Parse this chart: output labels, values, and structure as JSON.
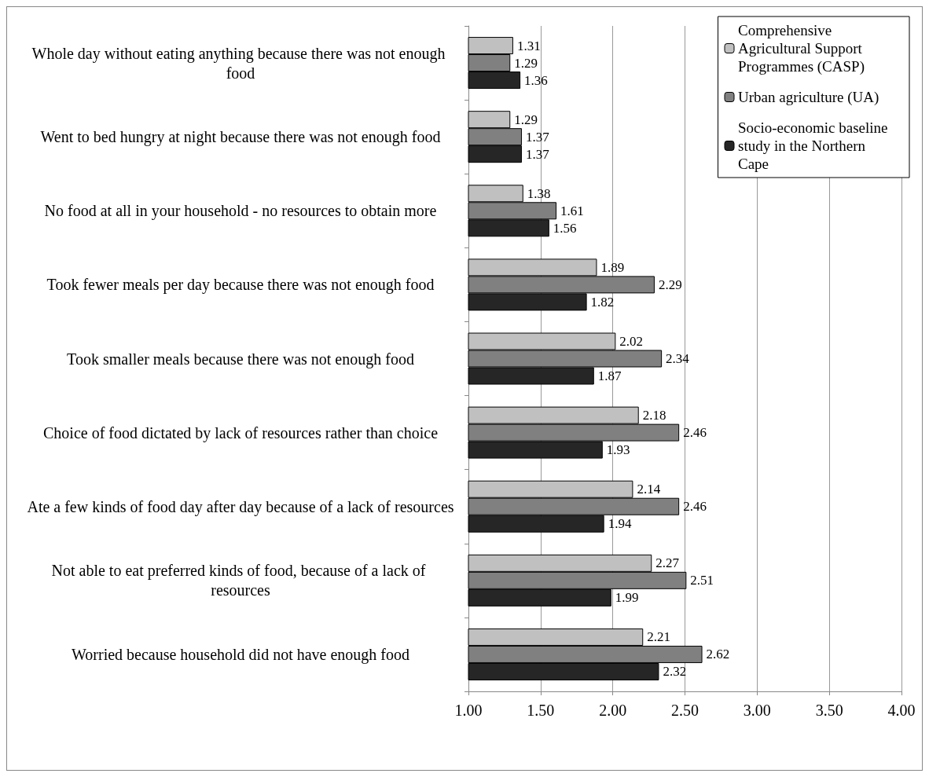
{
  "chart_data": {
    "type": "bar",
    "orientation": "horizontal",
    "categories": [
      "Whole day without eating anything because there was not enough food",
      "Went to bed hungry at night because there was not enough food",
      "No food at all in your household - no resources to obtain more",
      "Took fewer meals per day because there was not enough food",
      "Took smaller meals because there was not enough food",
      "Choice of food dictated by lack of resources rather than choice",
      "Ate a few kinds of food day after day because of a lack of resources",
      "Not able to eat preferred kinds of food, because of a lack of resources",
      "Worried because household did not have enough food"
    ],
    "series": [
      {
        "name": "Comprehensive Agricultural Support Programmes (CASP)",
        "color": "#c0c0c0",
        "values": [
          1.31,
          1.29,
          1.38,
          1.89,
          2.02,
          2.18,
          2.14,
          2.27,
          2.21
        ]
      },
      {
        "name": "Urban agriculture (UA)",
        "color": "#808080",
        "values": [
          1.29,
          1.37,
          1.61,
          2.29,
          2.34,
          2.46,
          2.46,
          2.51,
          2.62
        ]
      },
      {
        "name": "Socio-economic baseline study in the Northern Cape",
        "color": "#262626",
        "values": [
          1.36,
          1.37,
          1.56,
          1.82,
          1.87,
          1.93,
          1.94,
          1.99,
          2.32
        ]
      }
    ],
    "xlim": [
      1,
      4
    ],
    "xticks": [
      {
        "value": 1,
        "label": "1.00"
      },
      {
        "value": 1.5,
        "label": "1.50"
      },
      {
        "value": 2,
        "label": "2.00"
      },
      {
        "value": 2.5,
        "label": "2.50"
      },
      {
        "value": 3,
        "label": "3.00"
      },
      {
        "value": 3.5,
        "label": "3.50"
      },
      {
        "value": 4,
        "label": "4.00"
      }
    ],
    "grid": "x",
    "legend": "top right",
    "data_labels": true
  }
}
